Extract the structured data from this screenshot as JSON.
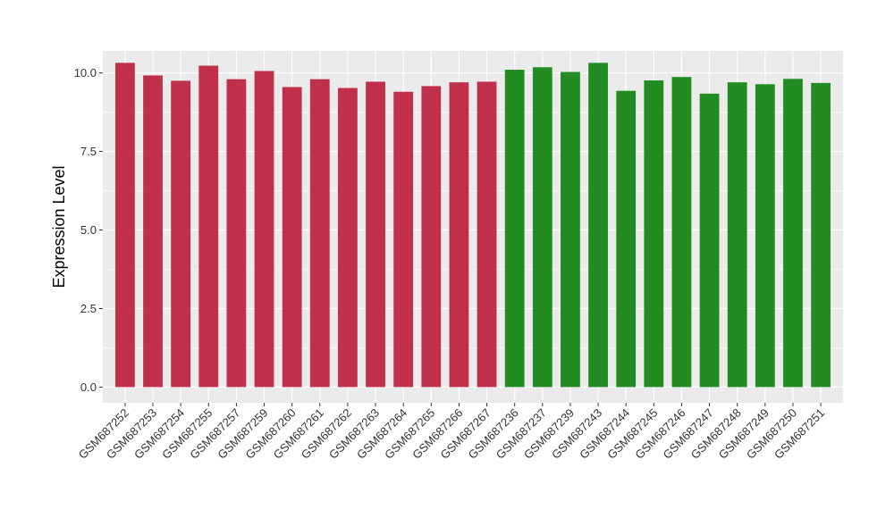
{
  "chart_data": {
    "type": "bar",
    "title": "",
    "xlabel": "",
    "ylabel": "Expression Level",
    "ylim": [
      -0.5,
      10.7
    ],
    "yticks": [
      0.0,
      2.5,
      5.0,
      7.5,
      10.0
    ],
    "ytick_labels": [
      "0.0",
      "2.5",
      "5.0",
      "7.5",
      "10.0"
    ],
    "grid": true,
    "colors": {
      "panel": "#EBEBEB",
      "grid": "#FFFFFF",
      "group_a": "#C0304A",
      "group_b": "#228B22"
    },
    "categories": [
      "GSM687252",
      "GSM687253",
      "GSM687254",
      "GSM687255",
      "GSM687257",
      "GSM687259",
      "GSM687260",
      "GSM687261",
      "GSM687262",
      "GSM687263",
      "GSM687264",
      "GSM687265",
      "GSM687266",
      "GSM687267",
      "GSM687236",
      "GSM687237",
      "GSM687239",
      "GSM687243",
      "GSM687244",
      "GSM687245",
      "GSM687246",
      "GSM687247",
      "GSM687248",
      "GSM687249",
      "GSM687250",
      "GSM687251"
    ],
    "values": [
      10.32,
      9.92,
      9.75,
      10.23,
      9.8,
      10.06,
      9.55,
      9.8,
      9.52,
      9.72,
      9.4,
      9.58,
      9.7,
      9.72,
      10.1,
      10.18,
      10.03,
      10.32,
      9.43,
      9.76,
      9.87,
      9.34,
      9.7,
      9.64,
      9.81,
      9.68
    ],
    "bar_groups": [
      "a",
      "a",
      "a",
      "a",
      "a",
      "a",
      "a",
      "a",
      "a",
      "a",
      "a",
      "a",
      "a",
      "a",
      "b",
      "b",
      "b",
      "b",
      "b",
      "b",
      "b",
      "b",
      "b",
      "b",
      "b",
      "b"
    ]
  }
}
